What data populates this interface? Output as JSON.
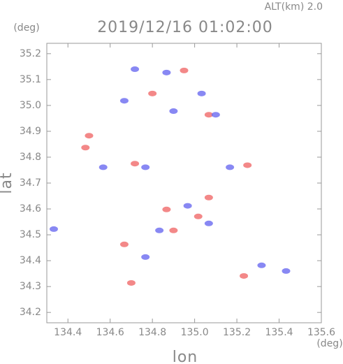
{
  "chart_data": {
    "type": "scatter",
    "title": "2019/12/16 01:02:00",
    "subtitle": "ALT(km)  2.0",
    "y_unit": "(deg)",
    "x_unit": "(deg)",
    "x_label": "lon",
    "y_label": "lat",
    "xlim": [
      134.3,
      135.6
    ],
    "ylim": [
      34.16,
      35.24
    ],
    "xticks": [
      134.4,
      134.6,
      134.8,
      {
        "value": 135,
        "label": "135.0"
      },
      135.2,
      135.4,
      135.6
    ],
    "yticks": [
      34.2,
      34.3,
      34.4,
      34.5,
      34.6,
      34.7,
      34.8,
      34.9,
      {
        "value": 35,
        "label": "35.0"
      },
      35.1,
      35.2
    ],
    "series": [
      {
        "color": "#f06a6a",
        "x": [
          134.7,
          134.483,
          134.5,
          134.95,
          134.8,
          135.067,
          134.717,
          135.25,
          135.233,
          134.9,
          134.867,
          135.017,
          134.667,
          135.067
        ],
        "values": [
          34.314,
          34.837,
          34.883,
          35.135,
          35.046,
          34.964,
          34.775,
          34.769,
          34.341,
          34.517,
          34.598,
          34.571,
          34.463,
          34.644
        ]
      },
      {
        "color": "#6a6af0",
        "x": [
          134.717,
          134.867,
          135.033,
          134.9,
          134.667,
          134.767,
          135.167,
          135.317,
          135.433,
          135.067,
          134.967,
          134.833,
          134.333,
          134.767,
          134.567,
          135.1
        ],
        "values": [
          35.14,
          35.127,
          35.046,
          34.978,
          35.018,
          34.761,
          34.761,
          34.382,
          34.36,
          34.544,
          34.612,
          34.517,
          34.522,
          34.414,
          34.761,
          34.964
        ]
      }
    ]
  }
}
